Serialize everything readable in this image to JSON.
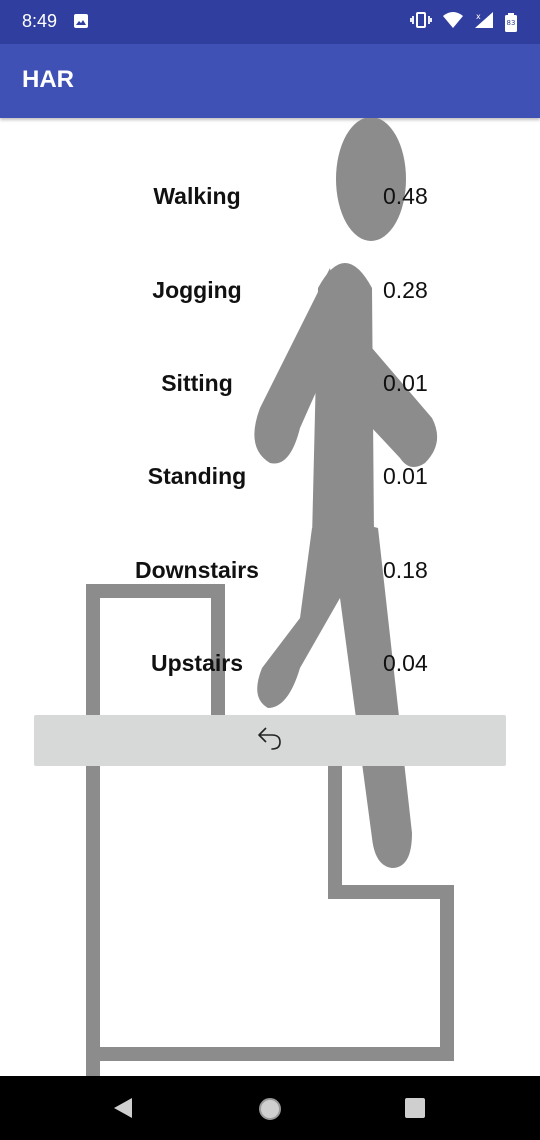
{
  "status_bar": {
    "time": "8:49",
    "battery": "83"
  },
  "app_bar": {
    "title": "HAR"
  },
  "activities": [
    {
      "label": "Walking",
      "value": "0.48"
    },
    {
      "label": "Jogging",
      "value": "0.28"
    },
    {
      "label": "Sitting",
      "value": "0.01"
    },
    {
      "label": "Standing",
      "value": "0.01"
    },
    {
      "label": "Downstairs",
      "value": "0.18"
    },
    {
      "label": "Upstairs",
      "value": "0.04"
    }
  ],
  "reset_button": {
    "icon": "undo-icon"
  },
  "nav_bar": {
    "back_icon": "back-triangle-icon",
    "home_icon": "home-circle-icon",
    "recents_icon": "recents-square-icon"
  },
  "colors": {
    "status_bar": "#303f9f",
    "app_bar": "#3f51b5",
    "figure_gray": "#8c8c8c",
    "button_gray": "#d7d8d8"
  }
}
